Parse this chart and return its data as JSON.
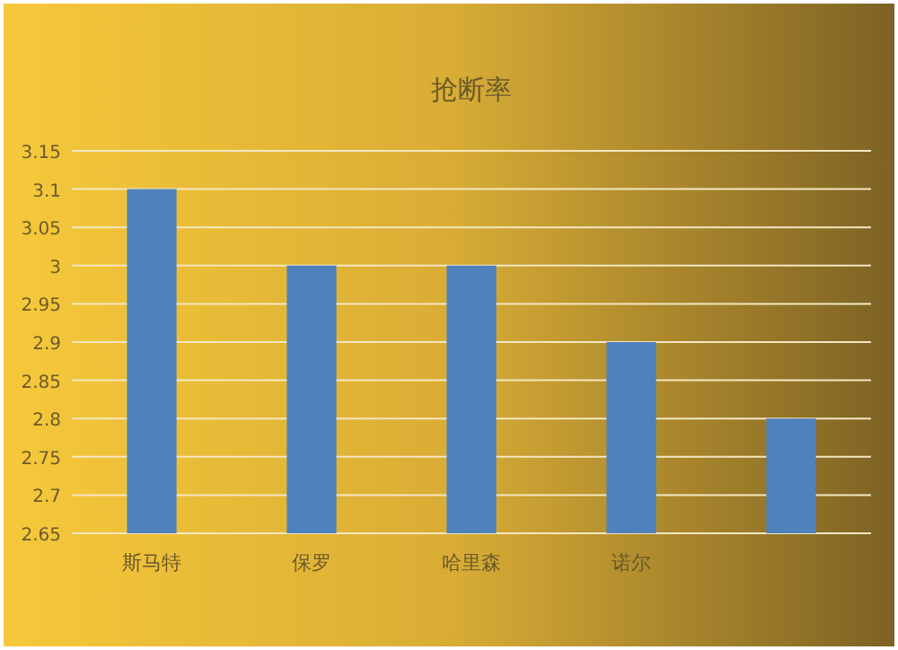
{
  "chart_data": {
    "type": "bar",
    "title": "抢断率",
    "categories": [
      "斯马特",
      "保罗",
      "哈里森",
      "诺尔",
      null
    ],
    "values": [
      3.1,
      3.0,
      3.0,
      2.9,
      2.8
    ],
    "color": "#4f81bd",
    "ylim": [
      2.65,
      3.15
    ],
    "yticks": [
      2.65,
      2.7,
      2.75,
      2.8,
      2.85,
      2.9,
      2.95,
      3,
      3.05,
      3.1,
      3.15
    ],
    "grid": "y"
  }
}
